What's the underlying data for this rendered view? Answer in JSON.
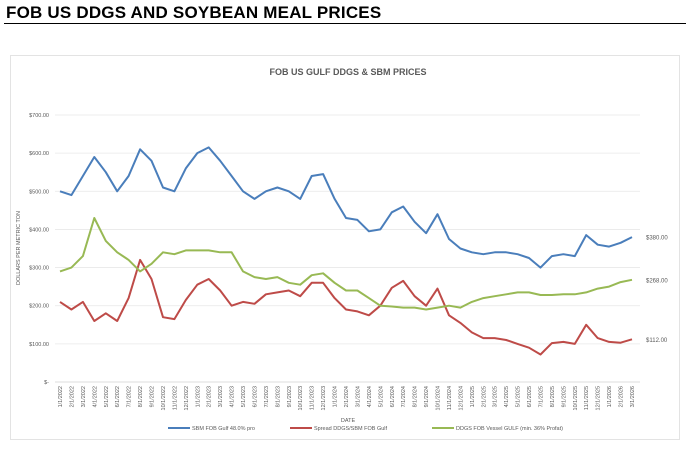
{
  "page_title": "FOB US DDGS AND SOYBEAN MEAL PRICES",
  "chart_data": {
    "type": "line",
    "title": "FOB US GULF DDGS & SBM PRICES",
    "xlabel": "DATE",
    "ylabel": "DOLLARS PER METRIC TON",
    "ylim": [
      0,
      700
    ],
    "y_ticks": [
      "$-",
      "$100.00",
      "$200.00",
      "$300.00",
      "$400.00",
      "$500.00",
      "$600.00",
      "$700.00"
    ],
    "grid": true,
    "legend_position": "bottom",
    "x": [
      "1/1/2022",
      "2/1/2022",
      "3/1/2022",
      "4/1/2022",
      "5/1/2022",
      "6/1/2022",
      "7/1/2022",
      "8/1/2022",
      "9/1/2022",
      "10/1/2022",
      "11/1/2022",
      "12/1/2022",
      "1/1/2023",
      "2/1/2023",
      "3/1/2023",
      "4/1/2023",
      "5/1/2023",
      "6/1/2023",
      "7/1/2023",
      "8/1/2023",
      "9/1/2023",
      "10/1/2023",
      "11/1/2023",
      "12/1/2023",
      "1/1/2024",
      "2/1/2024",
      "3/1/2024",
      "4/1/2024",
      "5/1/2024",
      "6/1/2024",
      "7/1/2024",
      "8/1/2024",
      "9/1/2024",
      "10/1/2024",
      "11/1/2024",
      "12/1/2024",
      "1/1/2025",
      "2/1/2025",
      "3/1/2025",
      "4/1/2025",
      "5/1/2025",
      "6/1/2025",
      "7/1/2025",
      "8/1/2025",
      "9/1/2025",
      "10/1/2025",
      "11/1/2025",
      "12/1/2025",
      "1/1/2026",
      "2/1/2026",
      "3/1/2026"
    ],
    "series": [
      {
        "name": "SBM FOB Gulf 48.0% pro",
        "color": "#4a7ebb",
        "values": [
          500,
          490,
          540,
          590,
          550,
          500,
          540,
          610,
          580,
          510,
          500,
          560,
          600,
          615,
          580,
          540,
          500,
          480,
          500,
          510,
          500,
          480,
          540,
          545,
          480,
          430,
          425,
          395,
          400,
          445,
          460,
          420,
          390,
          440,
          375,
          350,
          340,
          335,
          340,
          340,
          335,
          325,
          300,
          330,
          335,
          330,
          385,
          360,
          355,
          365,
          380
        ],
        "end_label": "$380.00"
      },
      {
        "name": "Spread DDGS/SBM FOB Gulf",
        "color": "#be4b48",
        "values": [
          210,
          190,
          210,
          160,
          180,
          160,
          220,
          320,
          270,
          170,
          165,
          215,
          255,
          270,
          240,
          200,
          210,
          205,
          230,
          235,
          240,
          225,
          260,
          260,
          220,
          190,
          185,
          175,
          200,
          247,
          265,
          225,
          200,
          245,
          175,
          155,
          130,
          115,
          115,
          110,
          100,
          90,
          72,
          102,
          105,
          100,
          150,
          115,
          105,
          103,
          112
        ],
        "end_label": "$112.00"
      },
      {
        "name": "DDGS FOB Vessel GULF  (min. 36% Profat)",
        "color": "#98b954",
        "values": [
          290,
          300,
          330,
          430,
          370,
          340,
          320,
          290,
          310,
          340,
          335,
          345,
          345,
          345,
          340,
          340,
          290,
          275,
          270,
          275,
          260,
          255,
          280,
          285,
          260,
          240,
          240,
          220,
          200,
          198,
          195,
          195,
          190,
          195,
          200,
          195,
          210,
          220,
          225,
          230,
          235,
          235,
          228,
          228,
          230,
          230,
          235,
          245,
          250,
          262,
          268
        ],
        "end_label": "$268.00"
      }
    ]
  }
}
